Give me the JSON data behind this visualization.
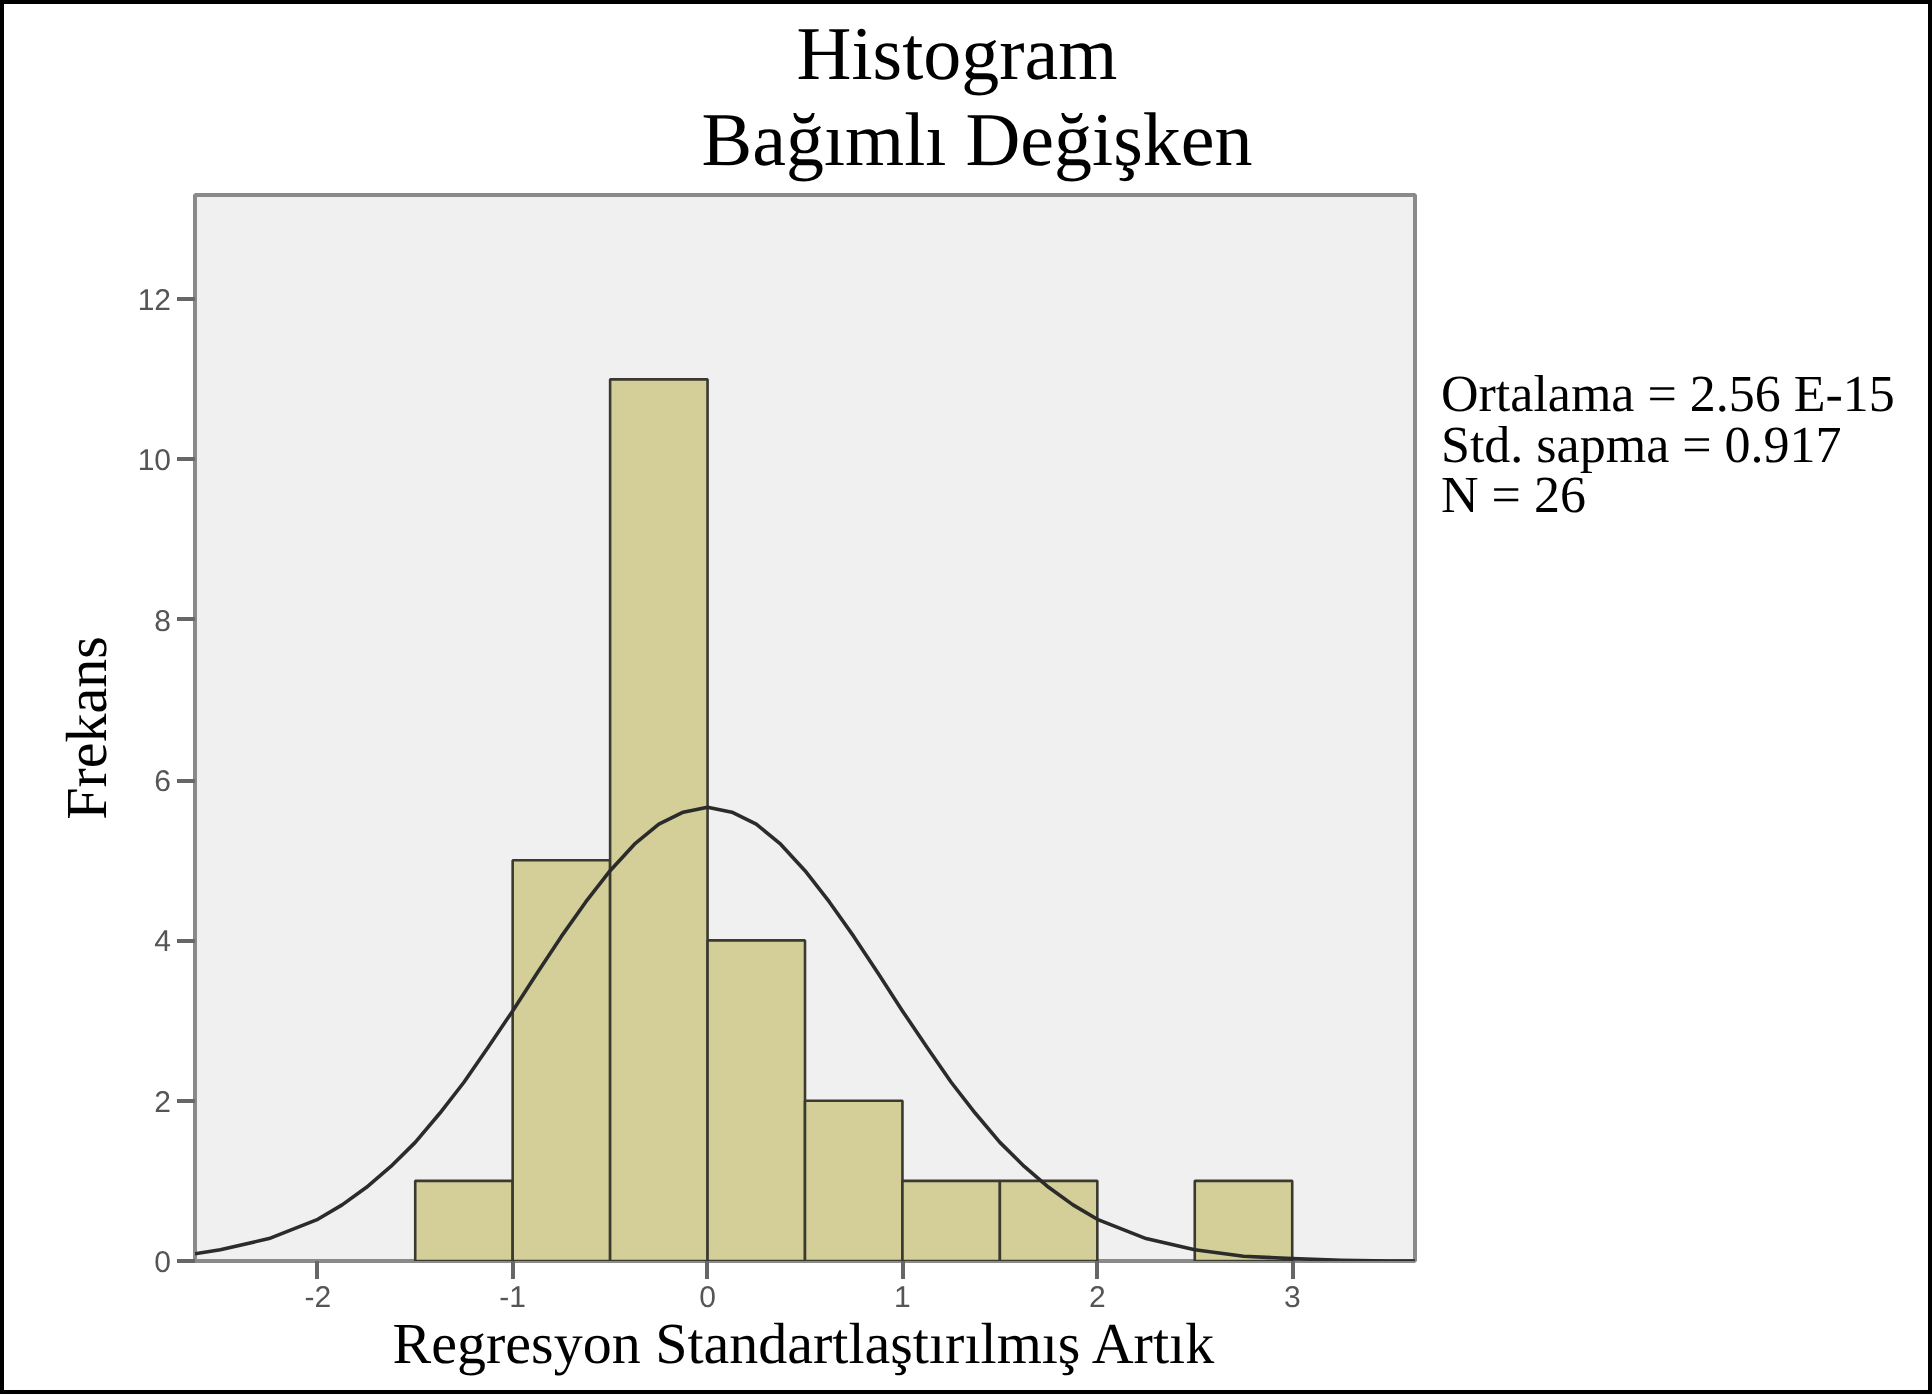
{
  "chart_data": {
    "type": "histogram",
    "title": "Histogram",
    "subtitle": "Bağımlı Değişken",
    "xlabel": "Regresyon Standartlaştırılmış Artık",
    "ylabel": "Frekans",
    "annotations": [
      "Ortalama = 2.56 E-15",
      "Std. sapma = 0.917",
      "N = 26"
    ],
    "series": [
      {
        "color": "#d4cf98",
        "bins": [
          -1.5,
          -1,
          -0.5,
          0,
          0.5,
          1,
          1.5,
          2,
          2.5,
          3
        ],
        "values": [
          1,
          5,
          11,
          4,
          2,
          1,
          1,
          0,
          1
        ]
      },
      {
        "type": "line",
        "color": "#2b2b2b",
        "x": [
          -2.63,
          -2.5,
          -2.25,
          -2,
          -1.875,
          -1.75,
          -1.625,
          -1.5,
          -1.375,
          -1.25,
          -1.125,
          -1,
          -0.875,
          -0.75,
          -0.625,
          -0.5,
          -0.375,
          -0.25,
          -0.125,
          0,
          0.125,
          0.25,
          0.375,
          0.5,
          0.625,
          0.75,
          0.875,
          1,
          1.125,
          1.25,
          1.375,
          1.5,
          1.625,
          1.75,
          1.875,
          2,
          2.25,
          2.5,
          2.75,
          3,
          3.25,
          3.5,
          3.63
        ],
        "values": [
          0.09,
          0.14,
          0.28,
          0.52,
          0.7,
          0.92,
          1.18,
          1.48,
          1.84,
          2.23,
          2.67,
          3.12,
          3.59,
          4.05,
          4.48,
          4.87,
          5.2,
          5.45,
          5.6,
          5.66,
          5.6,
          5.45,
          5.2,
          4.87,
          4.48,
          4.05,
          3.59,
          3.12,
          2.67,
          2.23,
          1.84,
          1.48,
          1.18,
          0.92,
          0.7,
          0.52,
          0.28,
          0.14,
          0.06,
          0.03,
          0.01,
          0,
          0
        ]
      }
    ],
    "xlim": [
      -2.63,
      3.63
    ],
    "ylim": [
      0,
      13.3
    ],
    "xticks": [
      -2,
      -1,
      0,
      1,
      2,
      3
    ],
    "yticks": [
      0,
      2,
      4,
      6,
      8,
      10,
      12
    ],
    "grid": false
  }
}
